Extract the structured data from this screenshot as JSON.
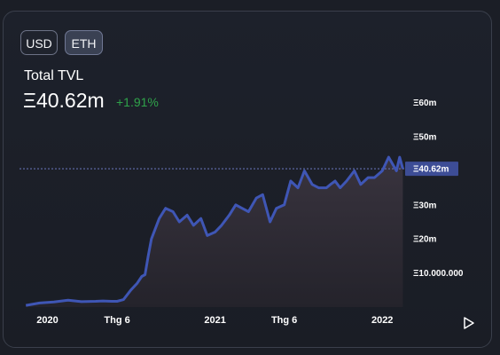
{
  "currency_toggle": {
    "usd_label": "USD",
    "eth_label": "ETH",
    "selected": "ETH"
  },
  "summary": {
    "label": "Total TVL",
    "value": "Ξ40.62m",
    "change": "+1.91%"
  },
  "current_value_badge": "Ξ40.62m",
  "colors": {
    "line": "#3f56b5",
    "badge": "#3d4d96",
    "change_positive": "#2fa24a"
  },
  "chart_data": {
    "type": "area",
    "title": "",
    "xlabel": "",
    "ylabel": "",
    "x_ticks": [
      "2020",
      "Thg 6",
      "2021",
      "Thg 6",
      "2022"
    ],
    "y_ticks": [
      "Ξ10.000.000",
      "Ξ20m",
      "Ξ30m",
      "Ξ40m",
      "Ξ50m",
      "Ξ60m"
    ],
    "ylim": [
      0,
      62000000
    ],
    "current_value": 40620000,
    "series": [
      {
        "x": [
          "2019-11-15",
          "2019-12-15",
          "2020-01-15",
          "2020-02-15",
          "2020-03-15",
          "2020-04-15",
          "2020-05-01",
          "2020-05-20",
          "2020-06-01",
          "2020-06-15",
          "2020-07-01",
          "2020-07-15",
          "2020-07-25",
          "2020-08-01",
          "2020-08-08",
          "2020-08-15",
          "2020-09-01",
          "2020-09-15",
          "2020-10-01",
          "2020-10-15",
          "2020-11-01",
          "2020-11-15",
          "2020-12-01",
          "2020-12-15",
          "2021-01-01",
          "2021-01-15",
          "2021-02-01",
          "2021-02-15",
          "2021-03-01",
          "2021-03-15",
          "2021-04-01",
          "2021-04-15",
          "2021-05-01",
          "2021-05-15",
          "2021-06-01",
          "2021-06-15",
          "2021-07-01",
          "2021-07-15",
          "2021-08-01",
          "2021-08-15",
          "2021-09-01",
          "2021-09-10",
          "2021-09-20",
          "2021-10-01",
          "2021-10-15",
          "2021-11-01",
          "2021-11-15",
          "2021-12-01",
          "2021-12-15",
          "2022-01-01",
          "2022-01-15",
          "2022-02-01",
          "2022-02-08",
          "2022-02-15"
        ],
        "y": [
          500000,
          1200000,
          1500000,
          2000000,
          1600000,
          1700000,
          1800000,
          1700000,
          1700000,
          2200000,
          5000000,
          7000000,
          9000000,
          9500000,
          15000000,
          20000000,
          26000000,
          29000000,
          28000000,
          25000000,
          27000000,
          24000000,
          26000000,
          21000000,
          22000000,
          24000000,
          27000000,
          30000000,
          29000000,
          28000000,
          32000000,
          33000000,
          25000000,
          29000000,
          30000000,
          37000000,
          35000000,
          40000000,
          36000000,
          35000000,
          35000000,
          36000000,
          37000000,
          35000000,
          37000000,
          40000000,
          36000000,
          38000000,
          38000000,
          40000000,
          44000000,
          40000000,
          44000000,
          40620000
        ]
      }
    ]
  }
}
